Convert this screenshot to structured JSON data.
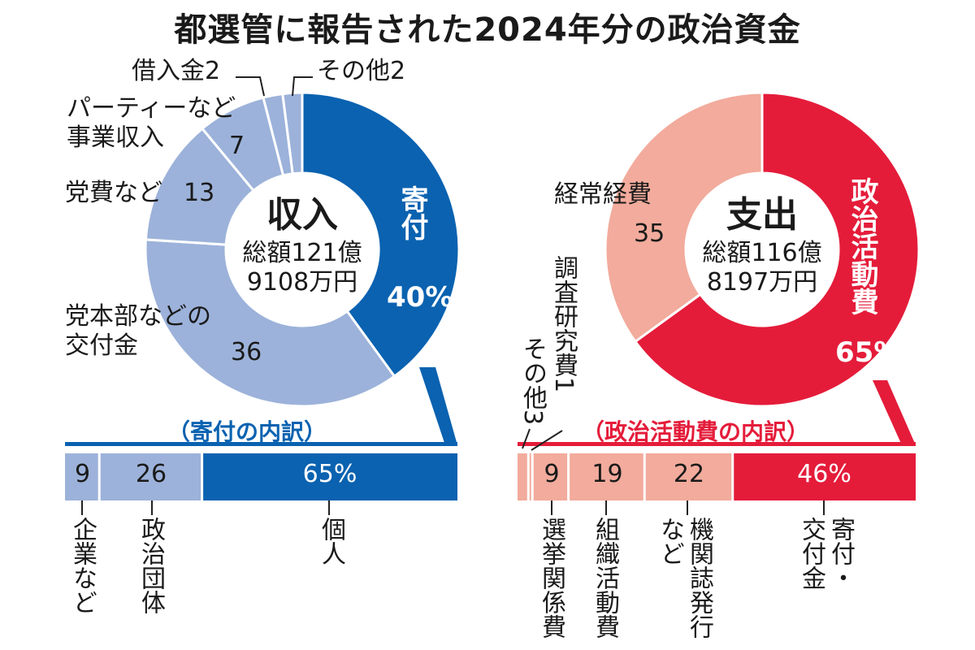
{
  "title": "都選管に報告された2024年分の政治資金",
  "colors": {
    "blue_dark": "#0a62b0",
    "blue_light": "#9cb2da",
    "red": "#e41c3a",
    "pink": "#f2ab9c"
  },
  "chart_data": [
    {
      "type": "pie",
      "center_title": "収入",
      "center_total": [
        "総額121億",
        "9108万円"
      ],
      "unit": "%",
      "slices": [
        {
          "label": "寄付",
          "value": 40,
          "display": "40%"
        },
        {
          "label": "党本部などの交付金",
          "value": 36,
          "display": "36"
        },
        {
          "label": "党費など",
          "value": 13,
          "display": "13"
        },
        {
          "label": "パーティーなど事業収入",
          "value": 7,
          "display": "7"
        },
        {
          "label": "借入金",
          "value": 2,
          "display": "2"
        },
        {
          "label": "その他",
          "value": 2,
          "display": "2"
        }
      ]
    },
    {
      "type": "pie",
      "center_title": "支出",
      "center_total": [
        "総額116億",
        "8197万円"
      ],
      "unit": "%",
      "slices": [
        {
          "label": "政治活動費",
          "value": 65,
          "display": "65%"
        },
        {
          "label": "経常経費",
          "value": 35,
          "display": "35"
        }
      ]
    },
    {
      "type": "bar",
      "orientation": "stacked-horizontal",
      "title": "（寄付の内訳）",
      "segments": [
        {
          "label": "企業など",
          "value": 9,
          "display": "9"
        },
        {
          "label": "政治団体",
          "value": 26,
          "display": "26"
        },
        {
          "label": "個人",
          "value": 65,
          "display": "65%"
        }
      ]
    },
    {
      "type": "bar",
      "orientation": "stacked-horizontal",
      "title": "（政治活動費の内訳）",
      "segments": [
        {
          "label": "その他",
          "value": 3,
          "display": "3"
        },
        {
          "label": "調査研究費",
          "value": 1,
          "display": "1"
        },
        {
          "label": "選挙関係費",
          "value": 9,
          "display": "9"
        },
        {
          "label": "組織活動費",
          "value": 19,
          "display": "19"
        },
        {
          "label": "機関誌発行など",
          "value": 22,
          "display": "22"
        },
        {
          "label": "寄付・交付金",
          "value": 46,
          "display": "46%"
        }
      ]
    }
  ]
}
